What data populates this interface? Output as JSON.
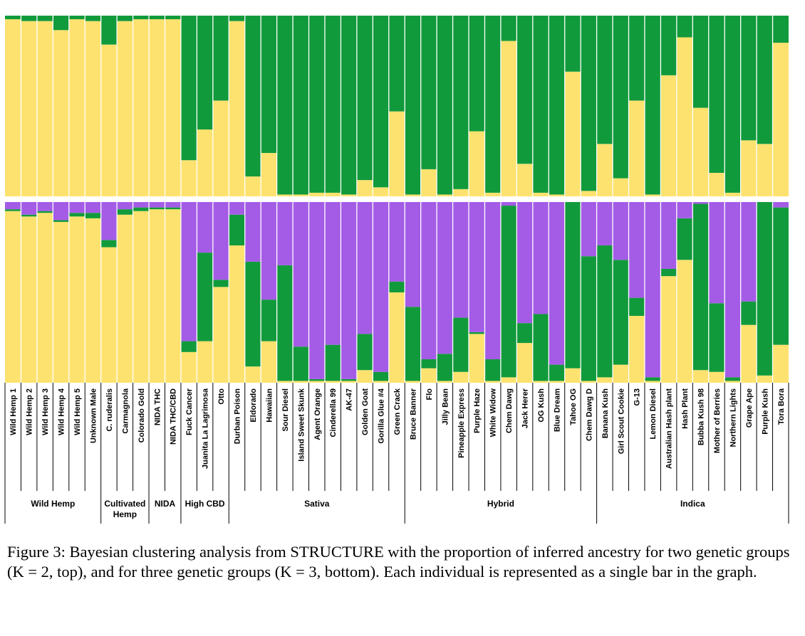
{
  "colors": {
    "yellow": "#fde26f",
    "green": "#119a3c",
    "purple": "#a45ce6",
    "divider": "#ffffff",
    "line": "#000000"
  },
  "caption": "Figure 3: Bayesian clustering analysis from STRUCTURE with the proportion of inferred ancestry for two genetic groups (K = 2, top), and for three genetic groups (K = 3, bottom). Each individual is represented as a single bar in the graph.",
  "chart_data": [
    {
      "type": "bar",
      "stacked": true,
      "panel": "K = 2",
      "ylim": [
        0,
        1
      ],
      "categories": [
        "Wild Hemp 1",
        "Wild Hemp 2",
        "Wild Hemp 3",
        "Wild Hemp 4",
        "Wild Hemp 5",
        "Unknown Male",
        "C. ruderalis",
        "Carmagnola",
        "Colorado Gold",
        "NIDA THC",
        "NIDA THC/CBD",
        "Fuck Cancer",
        "Juanita La Lagrimosa",
        "Otto",
        "Durban Poison",
        "Eldorado",
        "Hawaiian",
        "Sour Diesel",
        "Island Sweet Skunk",
        "Agent Orange",
        "Cinderella 99",
        "AK-47",
        "Golden Goat",
        "Gorilla Glue #4",
        "Green Crack",
        "Bruce Banner",
        "Flo",
        "Jilly Bean",
        "Pineapple Express",
        "Purple Haze",
        "White Widow",
        "Chem Dawg",
        "Jack Herer",
        "OG Kush",
        "Blue Dream",
        "Tahoe OG",
        "Chem Dawg D",
        "Banana Kush",
        "Girl Scout Cookie",
        "G-13",
        "Lemon Diesel",
        "Australian Hash plant",
        "Hash Plant",
        "Bubba Kush 98",
        "Mother of Berries",
        "Northern Lights",
        "Grape Ape",
        "Purple Kush",
        "Tora Bora"
      ],
      "series": [
        {
          "color_key": "yellow",
          "values": [
            0.98,
            0.97,
            0.97,
            0.92,
            0.98,
            0.97,
            0.84,
            0.97,
            0.98,
            0.98,
            0.98,
            0.2,
            0.37,
            0.53,
            0.97,
            0.11,
            0.24,
            0.01,
            0.01,
            0.02,
            0.02,
            0.01,
            0.09,
            0.05,
            0.47,
            0.01,
            0.15,
            0.01,
            0.04,
            0.36,
            0.02,
            0.86,
            0.18,
            0.02,
            0.01,
            0.69,
            0.03,
            0.29,
            0.1,
            0.53,
            0.01,
            0.67,
            0.88,
            0.49,
            0.13,
            0.02,
            0.31,
            0.29,
            0.85
          ]
        },
        {
          "color_key": "green",
          "values": [
            0.02,
            0.03,
            0.03,
            0.08,
            0.02,
            0.03,
            0.16,
            0.03,
            0.02,
            0.02,
            0.02,
            0.8,
            0.63,
            0.47,
            0.03,
            0.89,
            0.76,
            0.99,
            0.99,
            0.98,
            0.98,
            0.99,
            0.91,
            0.95,
            0.53,
            0.99,
            0.85,
            0.99,
            0.96,
            0.64,
            0.98,
            0.14,
            0.82,
            0.98,
            0.99,
            0.31,
            0.97,
            0.71,
            0.9,
            0.47,
            0.99,
            0.33,
            0.12,
            0.51,
            0.87,
            0.98,
            0.69,
            0.71,
            0.15
          ]
        }
      ]
    },
    {
      "type": "bar",
      "stacked": true,
      "panel": "K = 3",
      "ylim": [
        0,
        1
      ],
      "categories": [
        "Wild Hemp 1",
        "Wild Hemp 2",
        "Wild Hemp 3",
        "Wild Hemp 4",
        "Wild Hemp 5",
        "Unknown Male",
        "C. ruderalis",
        "Carmagnola",
        "Colorado Gold",
        "NIDA THC",
        "NIDA THC/CBD",
        "Fuck Cancer",
        "Juanita La Lagrimosa",
        "Otto",
        "Durban Poison",
        "Eldorado",
        "Hawaiian",
        "Sour Diesel",
        "Island Sweet Skunk",
        "Agent Orange",
        "Cinderella 99",
        "AK-47",
        "Golden Goat",
        "Gorilla Glue #4",
        "Green Crack",
        "Bruce Banner",
        "Flo",
        "Jilly Bean",
        "Pineapple Express",
        "Purple Haze",
        "White Widow",
        "Chem Dawg",
        "Jack Herer",
        "OG Kush",
        "Blue Dream",
        "Tahoe OG",
        "Chem Dawg D",
        "Banana Kush",
        "Girl Scout Cookie",
        "G-13",
        "Lemon Diesel",
        "Australian Hash plant",
        "Hash Plant",
        "Bubba Kush 98",
        "Mother of Berries",
        "Northern Lights",
        "Grape Ape",
        "Purple Kush",
        "Tora Bora"
      ],
      "series": [
        {
          "color_key": "yellow",
          "values": [
            0.95,
            0.92,
            0.94,
            0.89,
            0.92,
            0.91,
            0.75,
            0.93,
            0.95,
            0.96,
            0.96,
            0.17,
            0.23,
            0.53,
            0.76,
            0.09,
            0.23,
            0.01,
            0.01,
            0.01,
            0.01,
            0.01,
            0.07,
            0.01,
            0.5,
            0.01,
            0.08,
            0.01,
            0.06,
            0.27,
            0.01,
            0.03,
            0.22,
            0.01,
            0.01,
            0.08,
            0.01,
            0.03,
            0.1,
            0.37,
            0.01,
            0.59,
            0.68,
            0.07,
            0.06,
            0.01,
            0.32,
            0.04,
            0.21
          ]
        },
        {
          "color_key": "green",
          "values": [
            0.01,
            0.01,
            0.01,
            0.01,
            0.02,
            0.03,
            0.04,
            0.03,
            0.02,
            0.01,
            0.01,
            0.06,
            0.49,
            0.04,
            0.17,
            0.58,
            0.23,
            0.64,
            0.19,
            0.01,
            0.2,
            0.01,
            0.2,
            0.05,
            0.06,
            0.41,
            0.05,
            0.15,
            0.3,
            0.01,
            0.12,
            0.95,
            0.11,
            0.37,
            0.09,
            0.92,
            0.69,
            0.73,
            0.58,
            0.1,
            0.02,
            0.04,
            0.23,
            0.92,
            0.38,
            0.02,
            0.13,
            0.96,
            0.76
          ]
        },
        {
          "color_key": "purple",
          "values": [
            0.04,
            0.07,
            0.05,
            0.1,
            0.06,
            0.06,
            0.21,
            0.04,
            0.03,
            0.03,
            0.03,
            0.77,
            0.28,
            0.43,
            0.07,
            0.33,
            0.54,
            0.35,
            0.8,
            0.98,
            0.79,
            0.98,
            0.73,
            0.94,
            0.44,
            0.58,
            0.87,
            0.84,
            0.64,
            0.72,
            0.87,
            0.02,
            0.67,
            0.62,
            0.9,
            0.0,
            0.3,
            0.24,
            0.32,
            0.53,
            0.97,
            0.37,
            0.09,
            0.01,
            0.56,
            0.97,
            0.55,
            0.0,
            0.03
          ]
        }
      ]
    }
  ],
  "groups": [
    {
      "label": "Wild Hemp",
      "start": 0,
      "end": 5
    },
    {
      "label": "Cultivated Hemp",
      "start": 6,
      "end": 8
    },
    {
      "label": "NIDA",
      "start": 9,
      "end": 10
    },
    {
      "label": "High CBD",
      "start": 11,
      "end": 13
    },
    {
      "label": "Sativa",
      "start": 14,
      "end": 24
    },
    {
      "label": "Hybrid",
      "start": 25,
      "end": 36
    },
    {
      "label": "Indica",
      "start": 37,
      "end": 48
    }
  ]
}
